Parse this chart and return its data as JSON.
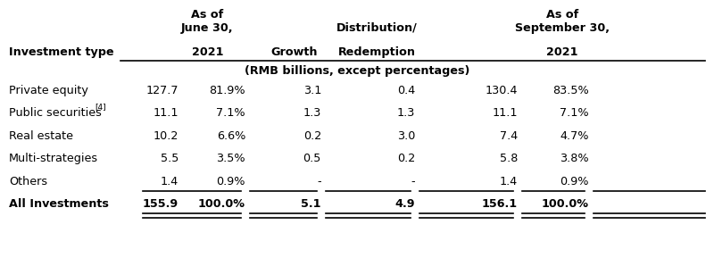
{
  "bg_color": "#ffffff",
  "text_color": "#000000",
  "font_size": 9.2,
  "bold_font_size": 9.2,
  "rows": [
    [
      "Private equity",
      "127.7",
      "81.9%",
      "3.1",
      "0.4",
      "130.4",
      "83.5%"
    ],
    [
      "Public securities",
      "11.1",
      "7.1%",
      "1.3",
      "1.3",
      "11.1",
      "7.1%"
    ],
    [
      "Real estate",
      "10.2",
      "6.6%",
      "0.2",
      "3.0",
      "7.4",
      "4.7%"
    ],
    [
      "Multi-strategies",
      "5.5",
      "3.5%",
      "0.5",
      "0.2",
      "5.8",
      "3.8%"
    ],
    [
      "Others",
      "1.4",
      "0.9%",
      "-",
      "-",
      "1.4",
      "0.9%"
    ]
  ],
  "total_row": [
    "All Investments",
    "155.9",
    "100.0%",
    "5.1",
    "4.9",
    "156.1",
    "100.0%"
  ],
  "sub_header": "(RMB billions, except percentages)",
  "note": "[4]"
}
